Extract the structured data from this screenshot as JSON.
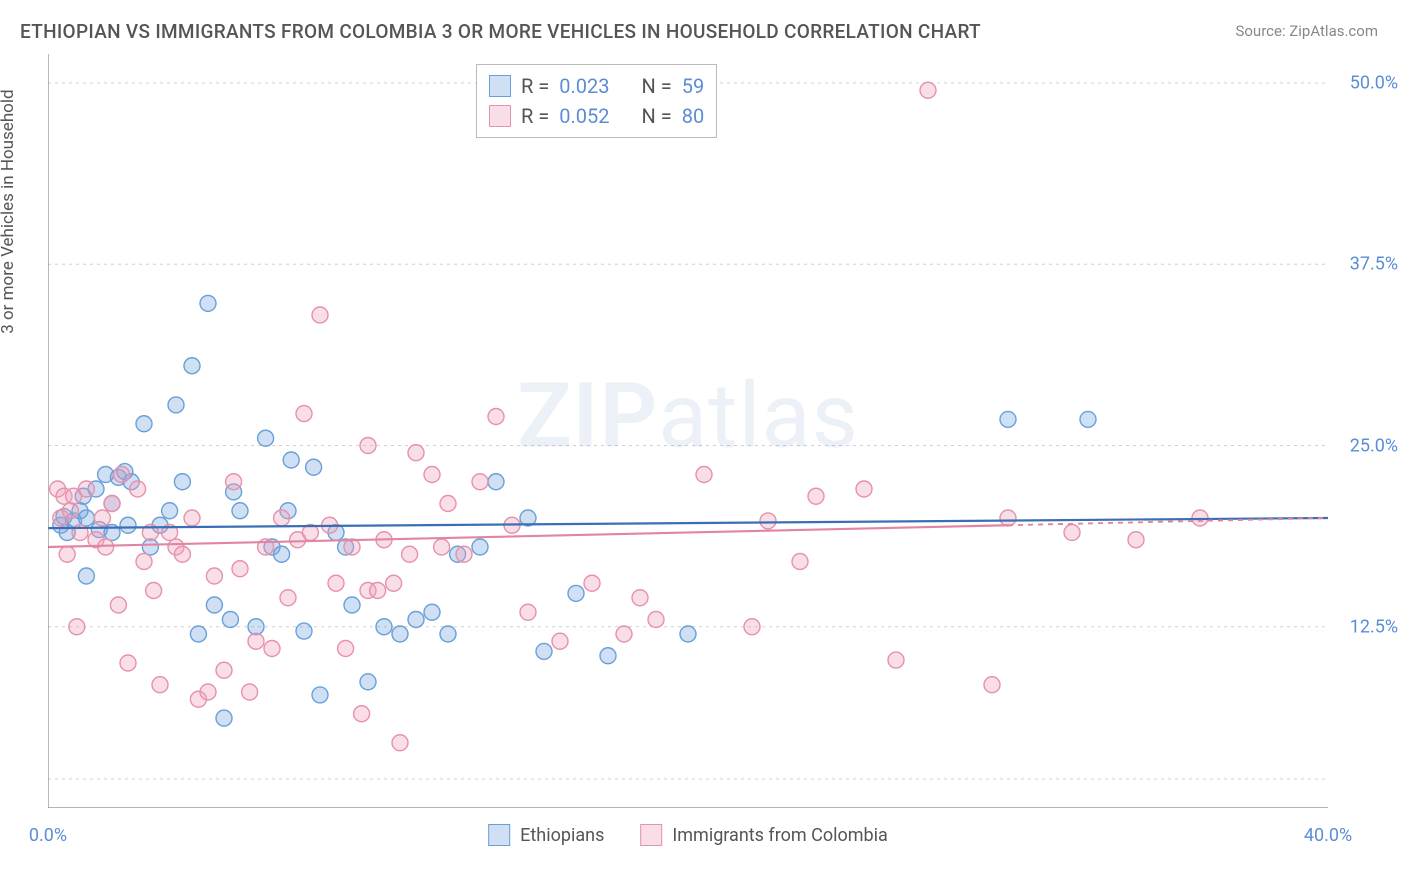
{
  "title": "ETHIOPIAN VS IMMIGRANTS FROM COLOMBIA 3 OR MORE VEHICLES IN HOUSEHOLD CORRELATION CHART",
  "source": "Source: ZipAtlas.com",
  "y_axis_label": "3 or more Vehicles in Household",
  "watermark": {
    "part1": "ZIP",
    "part2": "atlas"
  },
  "chart": {
    "type": "scatter",
    "background_color": "#ffffff",
    "grid_color": "#d0d0d0",
    "axis_color": "#888888",
    "tick_label_color": "#5b8dd6",
    "xlim": [
      0,
      40
    ],
    "ylim": [
      0,
      52
    ],
    "x_ticks": [
      0,
      4,
      8,
      12,
      16,
      20,
      24,
      28,
      32,
      36,
      40
    ],
    "x_tick_labels": {
      "0": "0.0%",
      "40": "40.0%"
    },
    "y_gridlines": [
      2,
      12.5,
      25,
      37.5,
      50
    ],
    "y_tick_labels": {
      "12.5": "12.5%",
      "25": "25.0%",
      "37.5": "37.5%",
      "50": "50.0%"
    },
    "series": [
      {
        "name": "Ethiopians",
        "legend_label": "Ethiopians",
        "marker_fill": "rgba(120,167,224,0.35)",
        "marker_stroke": "#6a9fd8",
        "marker_radius": 8,
        "r_value": "0.023",
        "n_value": "59",
        "trend": {
          "color": "#3b6fb5",
          "width": 2.2,
          "x1": 0,
          "y1": 19.3,
          "x2": 40,
          "y2": 20.0
        },
        "points": [
          [
            0.4,
            19.5
          ],
          [
            0.5,
            20.1
          ],
          [
            0.6,
            19.0
          ],
          [
            0.8,
            19.8
          ],
          [
            1.0,
            20.5
          ],
          [
            1.1,
            21.5
          ],
          [
            1.2,
            20.0
          ],
          [
            1.2,
            16.0
          ],
          [
            1.5,
            22.0
          ],
          [
            1.6,
            19.2
          ],
          [
            1.8,
            23.0
          ],
          [
            2.0,
            19.0
          ],
          [
            2.0,
            21.0
          ],
          [
            2.2,
            22.8
          ],
          [
            2.4,
            23.2
          ],
          [
            2.5,
            19.5
          ],
          [
            2.6,
            22.5
          ],
          [
            3.0,
            26.5
          ],
          [
            3.2,
            18.0
          ],
          [
            3.5,
            19.5
          ],
          [
            3.8,
            20.5
          ],
          [
            4.0,
            27.8
          ],
          [
            4.2,
            22.5
          ],
          [
            4.5,
            30.5
          ],
          [
            4.7,
            12.0
          ],
          [
            5.0,
            34.8
          ],
          [
            5.2,
            14.0
          ],
          [
            5.5,
            6.2
          ],
          [
            5.7,
            13.0
          ],
          [
            5.8,
            21.8
          ],
          [
            6.0,
            20.5
          ],
          [
            6.5,
            12.5
          ],
          [
            6.8,
            25.5
          ],
          [
            7.0,
            18.0
          ],
          [
            7.3,
            17.5
          ],
          [
            7.5,
            20.5
          ],
          [
            7.6,
            24.0
          ],
          [
            8.0,
            12.2
          ],
          [
            8.3,
            23.5
          ],
          [
            8.5,
            7.8
          ],
          [
            9.0,
            19.0
          ],
          [
            9.3,
            18.0
          ],
          [
            9.5,
            14.0
          ],
          [
            10.0,
            8.7
          ],
          [
            10.5,
            12.5
          ],
          [
            11.0,
            12.0
          ],
          [
            11.5,
            13.0
          ],
          [
            12.0,
            13.5
          ],
          [
            12.5,
            12.0
          ],
          [
            12.8,
            17.5
          ],
          [
            13.5,
            18.0
          ],
          [
            14.0,
            22.5
          ],
          [
            15.0,
            20.0
          ],
          [
            15.5,
            10.8
          ],
          [
            16.5,
            14.8
          ],
          [
            17.5,
            10.5
          ],
          [
            20.0,
            12.0
          ],
          [
            30.0,
            26.8
          ],
          [
            32.5,
            26.8
          ]
        ]
      },
      {
        "name": "Immigrants from Colombia",
        "legend_label": "Immigrants from Colombia",
        "marker_fill": "rgba(240,160,185,0.35)",
        "marker_stroke": "#e592ac",
        "marker_radius": 8,
        "r_value": "0.052",
        "n_value": "80",
        "trend": {
          "color": "#e285a3",
          "width": 2.2,
          "x1": 0,
          "y1": 18.0,
          "x2": 30,
          "y2": 19.5,
          "dash_after": 30,
          "x2_dash": 40,
          "y2_dash": 20.0
        },
        "points": [
          [
            0.3,
            22.0
          ],
          [
            0.4,
            20.0
          ],
          [
            0.5,
            21.5
          ],
          [
            0.6,
            17.5
          ],
          [
            0.7,
            20.5
          ],
          [
            0.8,
            21.5
          ],
          [
            0.9,
            12.5
          ],
          [
            1.0,
            19.0
          ],
          [
            1.2,
            22.0
          ],
          [
            1.5,
            18.5
          ],
          [
            1.7,
            20.0
          ],
          [
            1.8,
            18.0
          ],
          [
            2.0,
            21.0
          ],
          [
            2.2,
            14.0
          ],
          [
            2.3,
            23.0
          ],
          [
            2.5,
            10.0
          ],
          [
            2.8,
            22.0
          ],
          [
            3.0,
            17.0
          ],
          [
            3.2,
            19.0
          ],
          [
            3.3,
            15.0
          ],
          [
            3.5,
            8.5
          ],
          [
            3.8,
            19.0
          ],
          [
            4.0,
            18.0
          ],
          [
            4.2,
            17.5
          ],
          [
            4.5,
            20.0
          ],
          [
            4.7,
            7.5
          ],
          [
            5.0,
            8.0
          ],
          [
            5.2,
            16.0
          ],
          [
            5.5,
            9.5
          ],
          [
            5.8,
            22.5
          ],
          [
            6.0,
            16.5
          ],
          [
            6.3,
            8.0
          ],
          [
            6.5,
            11.5
          ],
          [
            6.8,
            18.0
          ],
          [
            7.0,
            11.0
          ],
          [
            7.3,
            20.0
          ],
          [
            7.5,
            14.5
          ],
          [
            7.8,
            18.5
          ],
          [
            8.0,
            27.2
          ],
          [
            8.2,
            19.0
          ],
          [
            8.5,
            34.0
          ],
          [
            8.8,
            19.5
          ],
          [
            9.0,
            15.5
          ],
          [
            9.3,
            11.0
          ],
          [
            9.5,
            18.0
          ],
          [
            9.8,
            6.5
          ],
          [
            10.0,
            25.0
          ],
          [
            10.0,
            15.0
          ],
          [
            10.3,
            15.0
          ],
          [
            10.5,
            18.5
          ],
          [
            10.8,
            15.5
          ],
          [
            11.0,
            4.5
          ],
          [
            11.3,
            17.5
          ],
          [
            11.5,
            24.5
          ],
          [
            12.0,
            23.0
          ],
          [
            12.3,
            18.0
          ],
          [
            12.5,
            21.0
          ],
          [
            13.0,
            17.5
          ],
          [
            13.5,
            22.5
          ],
          [
            14.0,
            27.0
          ],
          [
            14.5,
            19.5
          ],
          [
            15.0,
            13.5
          ],
          [
            16.0,
            11.5
          ],
          [
            17.0,
            15.5
          ],
          [
            18.0,
            12.0
          ],
          [
            18.5,
            14.5
          ],
          [
            19.0,
            13.0
          ],
          [
            20.5,
            23.0
          ],
          [
            22.0,
            12.5
          ],
          [
            22.5,
            19.8
          ],
          [
            23.5,
            17.0
          ],
          [
            24.0,
            21.5
          ],
          [
            25.5,
            22.0
          ],
          [
            26.5,
            10.2
          ],
          [
            27.5,
            49.5
          ],
          [
            29.5,
            8.5
          ],
          [
            30.0,
            20.0
          ],
          [
            32.0,
            19.0
          ],
          [
            34.0,
            18.5
          ],
          [
            36.0,
            20.0
          ]
        ]
      }
    ],
    "legend_stats_labels": {
      "r": "R =",
      "n": "N ="
    }
  }
}
